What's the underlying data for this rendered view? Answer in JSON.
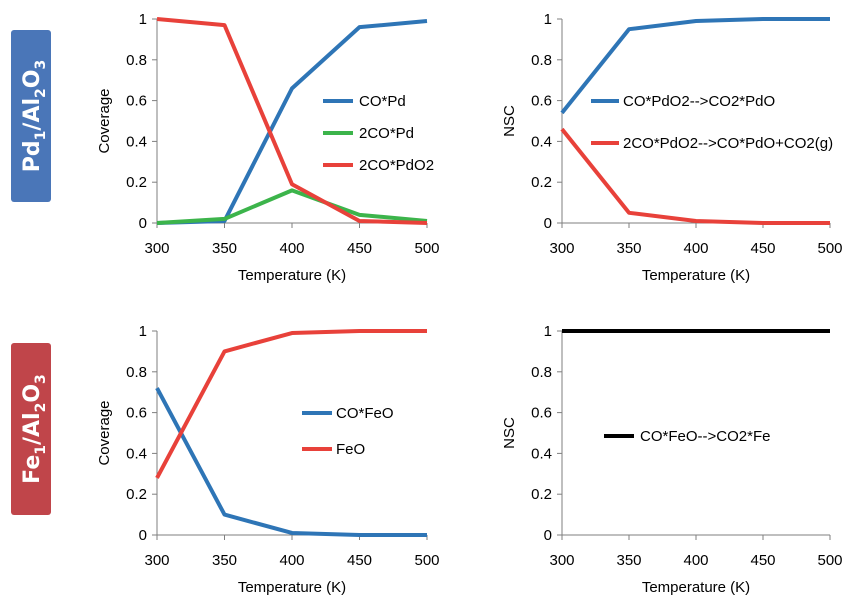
{
  "row_labels": [
    {
      "element": "Pd",
      "sub1": "1",
      "support": "Al",
      "sub2": "2",
      "oxide": "O",
      "sub3": "3",
      "color": "#4a76b8"
    },
    {
      "element": "Fe",
      "sub1": "1",
      "support": "Al",
      "sub2": "2",
      "oxide": "O",
      "sub3": "3",
      "color": "#c0454a"
    }
  ],
  "chart_data": [
    {
      "type": "line",
      "xlabel": "Temperature (K)",
      "ylabel": "Coverage",
      "x": [
        300,
        350,
        400,
        450,
        500
      ],
      "xlim": [
        300,
        500
      ],
      "xticks": [
        "300",
        "350",
        "400",
        "450",
        "500"
      ],
      "ylim": [
        0,
        1
      ],
      "yticks": [
        "0",
        "0.2",
        "0.4",
        "0.6",
        "0.8",
        "1"
      ],
      "grid": false,
      "legend_position": "right",
      "series": [
        {
          "name": "CO*Pd",
          "color": "#2e75b6",
          "values": [
            0.0,
            0.01,
            0.66,
            0.96,
            0.99
          ]
        },
        {
          "name": "2CO*Pd",
          "color": "#3cb44b",
          "values": [
            0.0,
            0.02,
            0.16,
            0.04,
            0.01
          ]
        },
        {
          "name": "2CO*PdO2",
          "color": "#e8413a",
          "values": [
            1.0,
            0.97,
            0.19,
            0.01,
            0.0
          ]
        }
      ]
    },
    {
      "type": "line",
      "xlabel": "Temperature (K)",
      "ylabel": "NSC",
      "x": [
        300,
        350,
        400,
        450,
        500
      ],
      "xlim": [
        300,
        500
      ],
      "xticks": [
        "300",
        "350",
        "400",
        "450",
        "500"
      ],
      "ylim": [
        0,
        1
      ],
      "yticks": [
        "0",
        "0.2",
        "0.4",
        "0.6",
        "0.8",
        "1"
      ],
      "grid": false,
      "legend_position": "right",
      "series": [
        {
          "name": "CO*PdO2-->CO2*PdO",
          "color": "#2e75b6",
          "values": [
            0.54,
            0.95,
            0.99,
            1.0,
            1.0
          ]
        },
        {
          "name": "2CO*PdO2-->CO*PdO+CO2(g)",
          "color": "#e8413a",
          "values": [
            0.46,
            0.05,
            0.01,
            0.0,
            0.0
          ]
        }
      ]
    },
    {
      "type": "line",
      "xlabel": "Temperature (K)",
      "ylabel": "Coverage",
      "x": [
        300,
        350,
        400,
        450,
        500
      ],
      "xlim": [
        300,
        500
      ],
      "xticks": [
        "300",
        "350",
        "400",
        "450",
        "500"
      ],
      "ylim": [
        0,
        1
      ],
      "yticks": [
        "0",
        "0.2",
        "0.4",
        "0.6",
        "0.8",
        "1"
      ],
      "grid": false,
      "legend_position": "center",
      "series": [
        {
          "name": "CO*FeO",
          "color": "#2e75b6",
          "values": [
            0.72,
            0.1,
            0.01,
            0.0,
            0.0
          ]
        },
        {
          "name": "FeO",
          "color": "#e8413a",
          "values": [
            0.28,
            0.9,
            0.99,
            1.0,
            1.0
          ]
        }
      ]
    },
    {
      "type": "line",
      "xlabel": "Temperature (K)",
      "ylabel": "NSC",
      "x": [
        300,
        350,
        400,
        450,
        500
      ],
      "xlim": [
        300,
        500
      ],
      "xticks": [
        "300",
        "350",
        "400",
        "450",
        "500"
      ],
      "ylim": [
        0,
        1
      ],
      "yticks": [
        "0",
        "0.2",
        "0.4",
        "0.6",
        "0.8",
        "1"
      ],
      "grid": false,
      "legend_position": "center",
      "series": [
        {
          "name": "CO*FeO-->CO2*Fe",
          "color": "#000000",
          "values": [
            1.0,
            1.0,
            1.0,
            1.0,
            1.0
          ]
        }
      ]
    }
  ]
}
